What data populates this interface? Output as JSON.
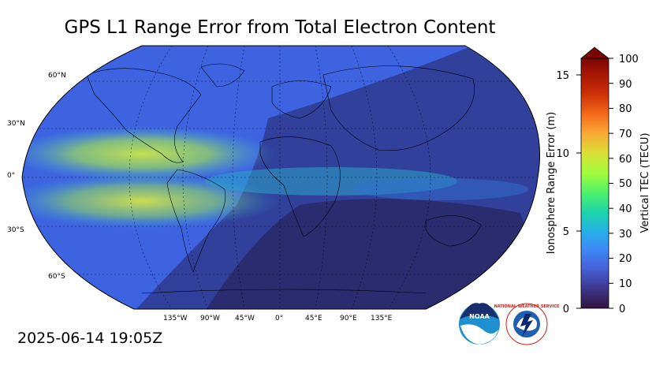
{
  "title": "GPS L1 Range Error from Total Electron Content",
  "timestamp": "2025-06-14 19:05Z",
  "map": {
    "projection": "robinson",
    "lat_labels": [
      "60°N",
      "30°N",
      "0°",
      "30°S",
      "60°S"
    ],
    "lon_labels": [
      "135°W",
      "90°W",
      "45°W",
      "0°",
      "45°E",
      "90°E",
      "135°E"
    ],
    "ocean_color": "#3d63e0",
    "night_color": "#2b2a6a",
    "equatorial_color": "#b8e04a"
  },
  "colorbar": {
    "left_label": "Ionosphere Range Error (m)",
    "left_ticks": [
      "0",
      "5",
      "10",
      "15"
    ],
    "right_label": "Vertical TEC (TECU)",
    "right_ticks": [
      "0",
      "10",
      "20",
      "30",
      "40",
      "50",
      "60",
      "70",
      "80",
      "90",
      "100"
    ],
    "colors": [
      "#30123b",
      "#3e378f",
      "#4662d8",
      "#3c8bf7",
      "#25b2e6",
      "#1dd3ae",
      "#4af16c",
      "#a2fc3c",
      "#dae036",
      "#fbaa36",
      "#f26719",
      "#cc2f06",
      "#8e1002",
      "#7a0403"
    ]
  },
  "logos": {
    "noaa_text": "NOAA",
    "nws_text": "NATIONAL WEATHER SERVICE"
  }
}
